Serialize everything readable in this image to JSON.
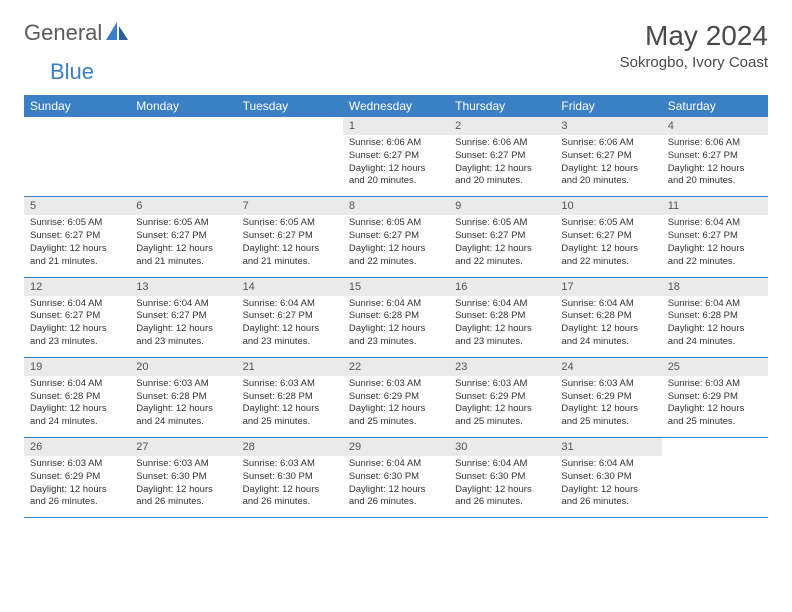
{
  "logo": {
    "text1": "General",
    "text2": "Blue"
  },
  "title": "May 2024",
  "location": "Sokrogbo, Ivory Coast",
  "colors": {
    "header_bg": "#3b7fc4",
    "header_text": "#ffffff",
    "daynum_bg": "#eaeaea",
    "daynum_text": "#555555",
    "border": "#3b7fc4",
    "logo_gray": "#5a5a5a",
    "logo_blue": "#3b7fc4"
  },
  "weekdays": [
    "Sunday",
    "Monday",
    "Tuesday",
    "Wednesday",
    "Thursday",
    "Friday",
    "Saturday"
  ],
  "weeks": [
    {
      "nums": [
        "",
        "",
        "",
        "1",
        "2",
        "3",
        "4"
      ],
      "data": [
        "",
        "",
        "",
        "Sunrise: 6:06 AM\nSunset: 6:27 PM\nDaylight: 12 hours and 20 minutes.",
        "Sunrise: 6:06 AM\nSunset: 6:27 PM\nDaylight: 12 hours and 20 minutes.",
        "Sunrise: 6:06 AM\nSunset: 6:27 PM\nDaylight: 12 hours and 20 minutes.",
        "Sunrise: 6:06 AM\nSunset: 6:27 PM\nDaylight: 12 hours and 20 minutes."
      ]
    },
    {
      "nums": [
        "5",
        "6",
        "7",
        "8",
        "9",
        "10",
        "11"
      ],
      "data": [
        "Sunrise: 6:05 AM\nSunset: 6:27 PM\nDaylight: 12 hours and 21 minutes.",
        "Sunrise: 6:05 AM\nSunset: 6:27 PM\nDaylight: 12 hours and 21 minutes.",
        "Sunrise: 6:05 AM\nSunset: 6:27 PM\nDaylight: 12 hours and 21 minutes.",
        "Sunrise: 6:05 AM\nSunset: 6:27 PM\nDaylight: 12 hours and 22 minutes.",
        "Sunrise: 6:05 AM\nSunset: 6:27 PM\nDaylight: 12 hours and 22 minutes.",
        "Sunrise: 6:05 AM\nSunset: 6:27 PM\nDaylight: 12 hours and 22 minutes.",
        "Sunrise: 6:04 AM\nSunset: 6:27 PM\nDaylight: 12 hours and 22 minutes."
      ]
    },
    {
      "nums": [
        "12",
        "13",
        "14",
        "15",
        "16",
        "17",
        "18"
      ],
      "data": [
        "Sunrise: 6:04 AM\nSunset: 6:27 PM\nDaylight: 12 hours and 23 minutes.",
        "Sunrise: 6:04 AM\nSunset: 6:27 PM\nDaylight: 12 hours and 23 minutes.",
        "Sunrise: 6:04 AM\nSunset: 6:27 PM\nDaylight: 12 hours and 23 minutes.",
        "Sunrise: 6:04 AM\nSunset: 6:28 PM\nDaylight: 12 hours and 23 minutes.",
        "Sunrise: 6:04 AM\nSunset: 6:28 PM\nDaylight: 12 hours and 23 minutes.",
        "Sunrise: 6:04 AM\nSunset: 6:28 PM\nDaylight: 12 hours and 24 minutes.",
        "Sunrise: 6:04 AM\nSunset: 6:28 PM\nDaylight: 12 hours and 24 minutes."
      ]
    },
    {
      "nums": [
        "19",
        "20",
        "21",
        "22",
        "23",
        "24",
        "25"
      ],
      "data": [
        "Sunrise: 6:04 AM\nSunset: 6:28 PM\nDaylight: 12 hours and 24 minutes.",
        "Sunrise: 6:03 AM\nSunset: 6:28 PM\nDaylight: 12 hours and 24 minutes.",
        "Sunrise: 6:03 AM\nSunset: 6:28 PM\nDaylight: 12 hours and 25 minutes.",
        "Sunrise: 6:03 AM\nSunset: 6:29 PM\nDaylight: 12 hours and 25 minutes.",
        "Sunrise: 6:03 AM\nSunset: 6:29 PM\nDaylight: 12 hours and 25 minutes.",
        "Sunrise: 6:03 AM\nSunset: 6:29 PM\nDaylight: 12 hours and 25 minutes.",
        "Sunrise: 6:03 AM\nSunset: 6:29 PM\nDaylight: 12 hours and 25 minutes."
      ]
    },
    {
      "nums": [
        "26",
        "27",
        "28",
        "29",
        "30",
        "31",
        ""
      ],
      "data": [
        "Sunrise: 6:03 AM\nSunset: 6:29 PM\nDaylight: 12 hours and 26 minutes.",
        "Sunrise: 6:03 AM\nSunset: 6:30 PM\nDaylight: 12 hours and 26 minutes.",
        "Sunrise: 6:03 AM\nSunset: 6:30 PM\nDaylight: 12 hours and 26 minutes.",
        "Sunrise: 6:04 AM\nSunset: 6:30 PM\nDaylight: 12 hours and 26 minutes.",
        "Sunrise: 6:04 AM\nSunset: 6:30 PM\nDaylight: 12 hours and 26 minutes.",
        "Sunrise: 6:04 AM\nSunset: 6:30 PM\nDaylight: 12 hours and 26 minutes.",
        ""
      ]
    }
  ]
}
